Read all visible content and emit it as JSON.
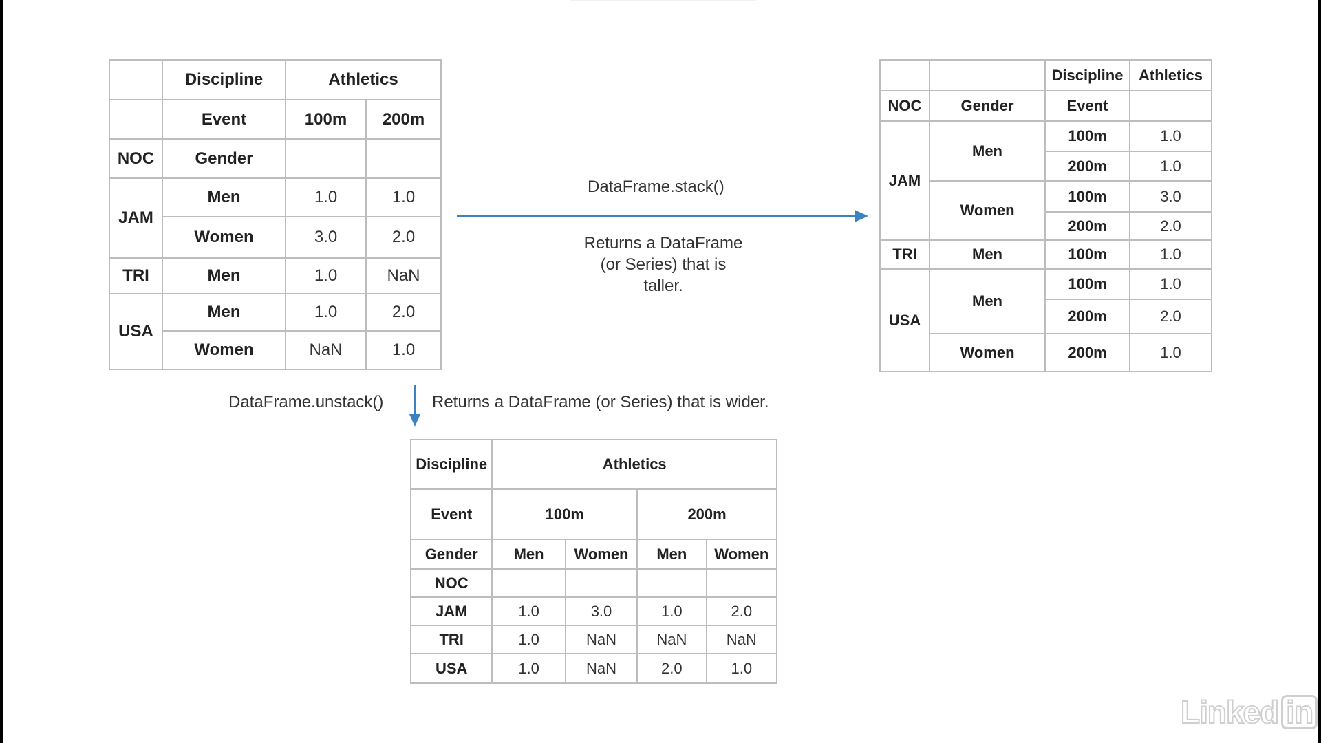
{
  "original_table": {
    "header1": {
      "discipline": "Discipline",
      "athletics": "Athletics"
    },
    "header2": {
      "event": "Event",
      "c100": "100m",
      "c200": "200m"
    },
    "header3": {
      "noc": "NOC",
      "gender": "Gender"
    },
    "rows": [
      {
        "noc": "JAM",
        "gender": "Men",
        "v100": "1.0",
        "v200": "1.0"
      },
      {
        "noc": "JAM",
        "gender": "Women",
        "v100": "3.0",
        "v200": "2.0"
      },
      {
        "noc": "TRI",
        "gender": "Men",
        "v100": "1.0",
        "v200": "NaN"
      },
      {
        "noc": "USA",
        "gender": "Men",
        "v100": "1.0",
        "v200": "2.0"
      },
      {
        "noc": "USA",
        "gender": "Women",
        "v100": "NaN",
        "v200": "1.0"
      }
    ]
  },
  "stack": {
    "method": "DataFrame.stack()",
    "description_lines": [
      "Returns a DataFrame",
      "(or Series) that is",
      "taller."
    ]
  },
  "stacked_table": {
    "header1": {
      "discipline": "Discipline",
      "athletics": "Athletics"
    },
    "header2": {
      "noc": "NOC",
      "gender": "Gender",
      "event": "Event"
    },
    "groups": {
      "jam": "JAM",
      "tri": "TRI",
      "usa": "USA",
      "jam_men": "Men",
      "jam_women": "Women",
      "tri_men": "Men",
      "usa_men": "Men",
      "usa_women": "Women"
    },
    "rows": [
      {
        "event": "100m",
        "value": "1.0"
      },
      {
        "event": "200m",
        "value": "1.0"
      },
      {
        "event": "100m",
        "value": "3.0"
      },
      {
        "event": "200m",
        "value": "2.0"
      },
      {
        "event": "100m",
        "value": "1.0"
      },
      {
        "event": "100m",
        "value": "1.0"
      },
      {
        "event": "200m",
        "value": "2.0"
      },
      {
        "event": "200m",
        "value": "1.0"
      }
    ]
  },
  "unstack": {
    "method": "DataFrame.unstack()",
    "description": "Returns a DataFrame (or Series) that is wider."
  },
  "unstacked_table": {
    "header1": {
      "discipline": "Discipline",
      "athletics": "Athletics"
    },
    "header2": {
      "event": "Event",
      "c100": "100m",
      "c200": "200m"
    },
    "header3": {
      "gender": "Gender",
      "men1": "Men",
      "women1": "Women",
      "men2": "Men",
      "women2": "Women"
    },
    "header4": {
      "noc": "NOC"
    },
    "rows": [
      {
        "noc": "JAM",
        "values": [
          "1.0",
          "3.0",
          "1.0",
          "2.0"
        ]
      },
      {
        "noc": "TRI",
        "values": [
          "1.0",
          "NaN",
          "NaN",
          "NaN"
        ]
      },
      {
        "noc": "USA",
        "values": [
          "1.0",
          "NaN",
          "2.0",
          "1.0"
        ]
      }
    ]
  },
  "logo": {
    "brand_left": "Linked",
    "brand_right": "in"
  },
  "colors": {
    "arrow": "#3c82c1",
    "border": "#bdbdbd"
  }
}
